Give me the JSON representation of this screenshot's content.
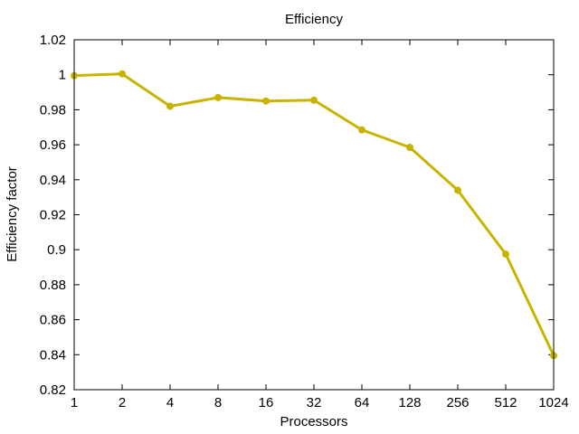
{
  "chart_data": {
    "type": "line",
    "title": "Efficiency",
    "xlabel": "Processors",
    "ylabel": "Efficiency factor",
    "x_scale": "log2",
    "x": [
      1,
      2,
      4,
      8,
      16,
      32,
      64,
      128,
      256,
      512,
      1024
    ],
    "x_tick_labels": [
      "1",
      "2",
      "4",
      "8",
      "16",
      "32",
      "64",
      "128",
      "256",
      "512",
      "1024"
    ],
    "ylim": [
      0.82,
      1.02
    ],
    "y_ticks": [
      0.82,
      0.84,
      0.86,
      0.88,
      0.9,
      0.92,
      0.94,
      0.96,
      0.98,
      1,
      1.02
    ],
    "y_tick_labels": [
      "0.82",
      "0.84",
      "0.86",
      "0.88",
      "0.9",
      "0.92",
      "0.94",
      "0.96",
      "0.98",
      "1",
      "1.02"
    ],
    "grid": false,
    "legend": "none",
    "series": [
      {
        "values": [
          0.9995,
          1.0005,
          0.982,
          0.987,
          0.985,
          0.9855,
          0.9685,
          0.9585,
          0.934,
          0.8975,
          0.8395
        ],
        "color": "#c8b400"
      }
    ]
  }
}
